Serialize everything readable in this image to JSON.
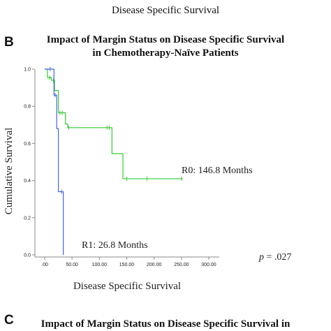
{
  "figure": {
    "top_caption": "Disease Specific Survival",
    "panel_b_letter": "B",
    "panel_c_letter": "C",
    "chart_b_title_line1": "Impact of Margin Status on Disease Specific Survival",
    "chart_b_title_line2": "in Chemotherapy-Naïve Patients",
    "chart_c_title_line1": "Impact of Margin Status on Disease Specific Survival in"
  },
  "chart_data": {
    "type": "line",
    "subtype": "kaplan-meier-step",
    "xlabel": "Disease Specific Survival",
    "ylabel": "Cumulative Survival",
    "xlim": [
      0,
      300
    ],
    "ylim": [
      0,
      1.0
    ],
    "x_ticks": [
      ".00",
      "50.00",
      "100.00",
      "150.00",
      "200.00",
      "250.00",
      "300.00"
    ],
    "y_ticks": [
      "0.0",
      "0.2",
      "0.4",
      "0.6",
      "0.8",
      "1.0"
    ],
    "grid": false,
    "series": [
      {
        "name": "R0",
        "label": "R0: 146.8 Months",
        "color": "#33cc33",
        "steps": [
          [
            0,
            1.0
          ],
          [
            5,
            0.955
          ],
          [
            12,
            0.94
          ],
          [
            18,
            0.885
          ],
          [
            25,
            0.765
          ],
          [
            38,
            0.705
          ],
          [
            42,
            0.685
          ],
          [
            123,
            0.545
          ],
          [
            143,
            0.41
          ],
          [
            252,
            0.41
          ]
        ],
        "censored": [
          [
            9,
            0.955
          ],
          [
            16,
            0.94
          ],
          [
            28,
            0.765
          ],
          [
            32,
            0.765
          ],
          [
            44,
            0.685
          ],
          [
            114,
            0.685
          ],
          [
            118,
            0.685
          ],
          [
            150,
            0.41
          ],
          [
            187,
            0.41
          ],
          [
            250,
            0.41
          ]
        ]
      },
      {
        "name": "R1",
        "label": "R1: 26.8 Months",
        "color": "#4466dd",
        "steps": [
          [
            0,
            1.0
          ],
          [
            17,
            0.86
          ],
          [
            22,
            0.68
          ],
          [
            25,
            0.34
          ],
          [
            34,
            0.0
          ]
        ],
        "censored": [
          [
            10,
            1.0
          ],
          [
            19,
            0.86
          ],
          [
            31,
            0.34
          ]
        ]
      }
    ],
    "annotations": {
      "p_value_label": "p",
      "p_value_text": " = .027"
    }
  }
}
